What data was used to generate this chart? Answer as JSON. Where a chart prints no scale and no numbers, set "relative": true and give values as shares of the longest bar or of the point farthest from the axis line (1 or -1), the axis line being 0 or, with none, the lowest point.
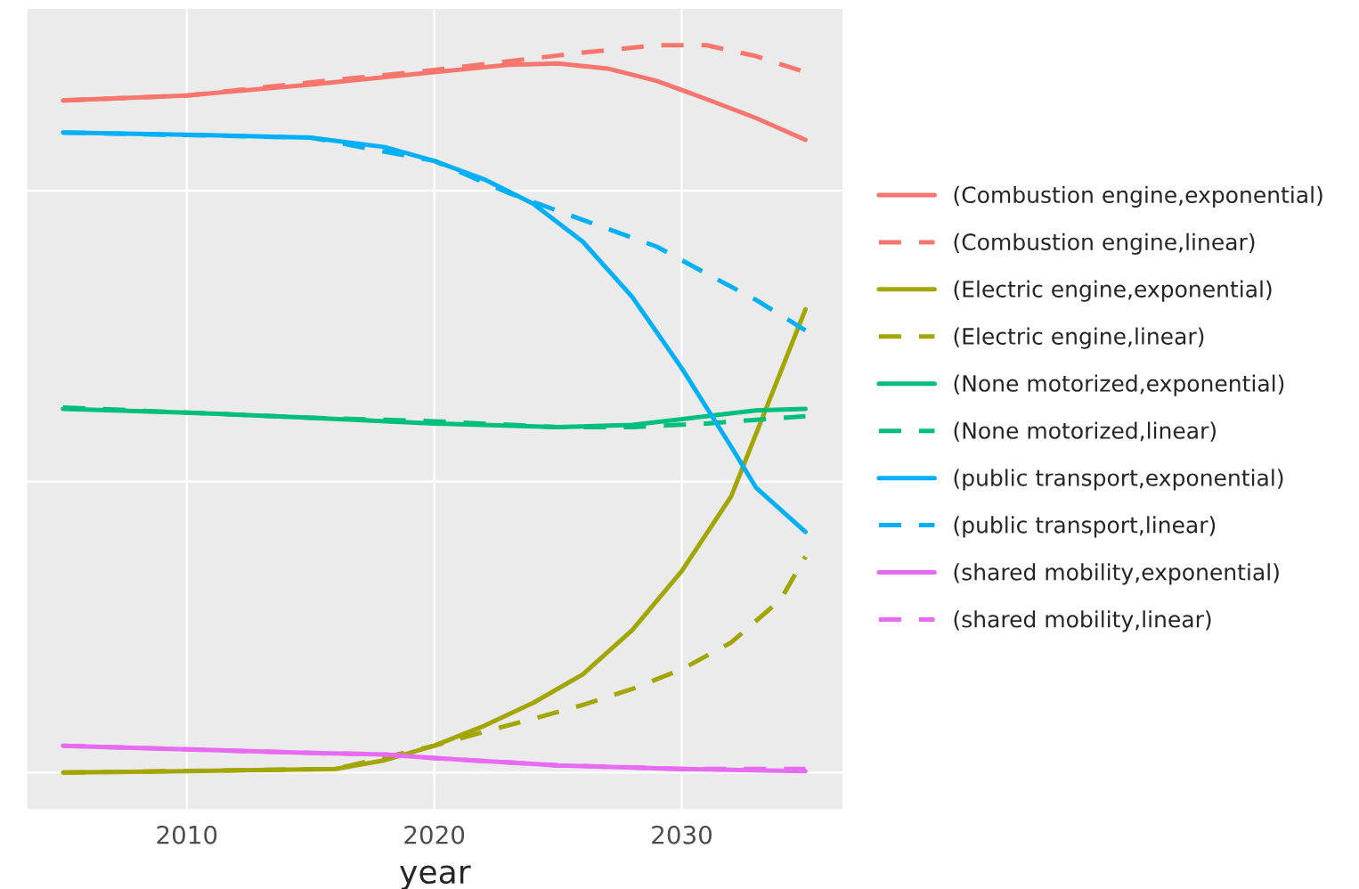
{
  "chart_data": {
    "type": "line",
    "xlabel": "year",
    "relative": true,
    "xlim": [
      2003.55,
      2036.5
    ],
    "xticks": [
      2010,
      2020,
      2030
    ],
    "grid": true,
    "legend": "right",
    "tick_labels": "x",
    "series": [
      {
        "name": "(Combustion engine,exponential)",
        "color": "#f8766d",
        "line_style": "solid",
        "x": [
          2005,
          2010,
          2015,
          2020,
          2023,
          2025,
          2027,
          2029,
          2031,
          2033,
          2035
        ],
        "values": [
          0.924,
          0.931,
          0.946,
          0.963,
          0.973,
          0.975,
          0.968,
          0.951,
          0.926,
          0.9,
          0.87
        ]
      },
      {
        "name": "(Combustion engine,linear)",
        "color": "#f8766d",
        "line_style": "dashed",
        "x": [
          2005,
          2010,
          2015,
          2020,
          2023,
          2026,
          2029,
          2031,
          2033,
          2035
        ],
        "values": [
          0.924,
          0.931,
          0.949,
          0.966,
          0.978,
          0.99,
          1.0,
          1.0,
          0.985,
          0.963
        ]
      },
      {
        "name": "(Electric engine,exponential)",
        "color": "#a3a500",
        "line_style": "solid",
        "x": [
          2005,
          2010,
          2016,
          2018,
          2020,
          2022,
          2024,
          2026,
          2028,
          2030,
          2032,
          2034,
          2035
        ],
        "values": [
          0,
          0.002,
          0.005,
          0.017,
          0.037,
          0.064,
          0.096,
          0.135,
          0.196,
          0.277,
          0.38,
          0.551,
          0.637
        ]
      },
      {
        "name": "(Electric engine,linear)",
        "color": "#a3a500",
        "line_style": "dashed",
        "x": [
          2005,
          2016,
          2020,
          2022,
          2024,
          2026,
          2028,
          2030,
          2032,
          2034,
          2035
        ],
        "values": [
          0,
          0.005,
          0.037,
          0.056,
          0.074,
          0.093,
          0.115,
          0.142,
          0.179,
          0.238,
          0.297
        ]
      },
      {
        "name": "(None motorized,exponential)",
        "color": "#00bf7d",
        "line_style": "solid",
        "x": [
          2005,
          2010,
          2015,
          2020,
          2025,
          2028,
          2031,
          2033,
          2035
        ],
        "values": [
          0.5,
          0.495,
          0.488,
          0.48,
          0.475,
          0.478,
          0.49,
          0.498,
          0.5
        ]
      },
      {
        "name": "(None motorized,linear)",
        "color": "#00bf7d",
        "line_style": "dashed",
        "x": [
          2005,
          2010,
          2015,
          2020,
          2025,
          2028,
          2031,
          2035
        ],
        "values": [
          0.502,
          0.495,
          0.488,
          0.483,
          0.475,
          0.475,
          0.48,
          0.49
        ]
      },
      {
        "name": "(public transport,exponential)",
        "color": "#00b0f6",
        "line_style": "solid",
        "x": [
          2005,
          2010,
          2015,
          2018,
          2020,
          2022,
          2024,
          2026,
          2028,
          2030,
          2032,
          2033,
          2035
        ],
        "values": [
          0.88,
          0.877,
          0.873,
          0.86,
          0.841,
          0.816,
          0.782,
          0.73,
          0.654,
          0.556,
          0.448,
          0.392,
          0.331
        ]
      },
      {
        "name": "(public transport,linear)",
        "color": "#00b0f6",
        "line_style": "dashed",
        "x": [
          2005,
          2015,
          2020,
          2023,
          2026,
          2029,
          2031,
          2033,
          2035
        ],
        "values": [
          0.88,
          0.873,
          0.841,
          0.797,
          0.76,
          0.723,
          0.686,
          0.65,
          0.608
        ]
      },
      {
        "name": "(shared mobility,exponential)",
        "color": "#e76bf3",
        "line_style": "solid",
        "x": [
          2005,
          2010,
          2015,
          2018,
          2020,
          2025,
          2030,
          2035
        ],
        "values": [
          0.037,
          0.032,
          0.027,
          0.025,
          0.02,
          0.01,
          0.005,
          0.002
        ]
      },
      {
        "name": "(shared mobility,linear)",
        "color": "#e76bf3",
        "line_style": "dashed",
        "x": [
          2005,
          2010,
          2015,
          2018,
          2020,
          2025,
          2030,
          2035
        ],
        "values": [
          0.037,
          0.032,
          0.027,
          0.025,
          0.02,
          0.01,
          0.005,
          0.005
        ]
      }
    ]
  }
}
